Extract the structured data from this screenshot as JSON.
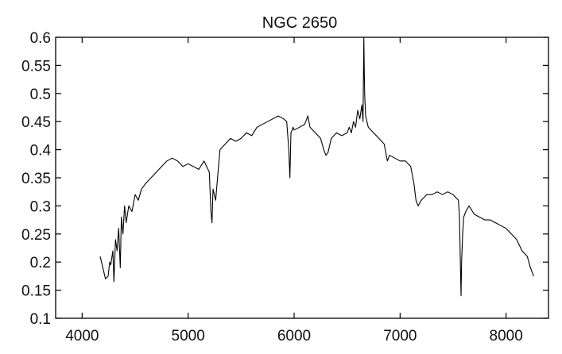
{
  "chart_data": {
    "type": "line",
    "title": "NGC 2650",
    "xlabel": "",
    "ylabel": "",
    "xlim": [
      3750,
      8400
    ],
    "ylim": [
      0.1,
      0.6
    ],
    "x_ticks": [
      4000,
      5000,
      6000,
      7000,
      8000
    ],
    "x_tick_labels": [
      "4000",
      "5000",
      "6000",
      "7000",
      "8000"
    ],
    "y_ticks": [
      0.1,
      0.15,
      0.2,
      0.25,
      0.3,
      0.35,
      0.4,
      0.45,
      0.5,
      0.55,
      0.6
    ],
    "y_tick_labels": [
      "0.1",
      "0.15",
      "0.2",
      "0.25",
      "0.3",
      "0.35",
      "0.4",
      "0.45",
      "0.5",
      "0.55",
      "0.6"
    ],
    "grid": false,
    "line_color": "#000000",
    "series": [
      {
        "x": [
          4170,
          4220,
          4245,
          4260,
          4270,
          4290,
          4300,
          4315,
          4330,
          4345,
          4360,
          4370,
          4385,
          4400,
          4415,
          4440,
          4470,
          4500,
          4530,
          4560,
          4600,
          4650,
          4700,
          4750,
          4800,
          4850,
          4900,
          4950,
          5000,
          5050,
          5100,
          5150,
          5200,
          5215,
          5225,
          5235,
          5260,
          5300,
          5350,
          5400,
          5450,
          5500,
          5550,
          5600,
          5650,
          5700,
          5750,
          5800,
          5850,
          5900,
          5930,
          5950,
          5960,
          5970,
          5990,
          6000,
          6050,
          6100,
          6130,
          6150,
          6200,
          6250,
          6280,
          6300,
          6320,
          6350,
          6400,
          6450,
          6500,
          6520,
          6540,
          6560,
          6580,
          6600,
          6620,
          6640,
          6650,
          6658,
          6665,
          6675,
          6700,
          6750,
          6800,
          6850,
          6880,
          6900,
          6950,
          7000,
          7050,
          7100,
          7130,
          7150,
          7170,
          7200,
          7250,
          7300,
          7350,
          7400,
          7450,
          7500,
          7550,
          7560,
          7575,
          7580,
          7590,
          7600,
          7620,
          7650,
          7700,
          7750,
          7800,
          7850,
          7900,
          7950,
          8000,
          8050,
          8100,
          8150,
          8200,
          8230,
          8260
        ],
        "y": [
          0.21,
          0.17,
          0.175,
          0.2,
          0.195,
          0.22,
          0.165,
          0.24,
          0.22,
          0.26,
          0.19,
          0.28,
          0.25,
          0.3,
          0.27,
          0.3,
          0.29,
          0.32,
          0.31,
          0.33,
          0.34,
          0.35,
          0.36,
          0.37,
          0.38,
          0.385,
          0.38,
          0.37,
          0.375,
          0.37,
          0.365,
          0.38,
          0.36,
          0.29,
          0.27,
          0.33,
          0.31,
          0.4,
          0.41,
          0.42,
          0.415,
          0.42,
          0.43,
          0.425,
          0.44,
          0.445,
          0.45,
          0.455,
          0.46,
          0.455,
          0.45,
          0.4,
          0.35,
          0.43,
          0.44,
          0.435,
          0.44,
          0.445,
          0.46,
          0.44,
          0.43,
          0.42,
          0.4,
          0.39,
          0.395,
          0.42,
          0.43,
          0.425,
          0.43,
          0.44,
          0.43,
          0.45,
          0.44,
          0.47,
          0.455,
          0.48,
          0.45,
          0.6,
          0.5,
          0.46,
          0.44,
          0.43,
          0.42,
          0.41,
          0.38,
          0.39,
          0.385,
          0.38,
          0.38,
          0.37,
          0.34,
          0.31,
          0.3,
          0.31,
          0.32,
          0.32,
          0.325,
          0.32,
          0.325,
          0.32,
          0.31,
          0.28,
          0.14,
          0.2,
          0.25,
          0.28,
          0.29,
          0.3,
          0.285,
          0.28,
          0.275,
          0.275,
          0.27,
          0.265,
          0.26,
          0.25,
          0.24,
          0.22,
          0.21,
          0.19,
          0.175
        ]
      }
    ]
  }
}
